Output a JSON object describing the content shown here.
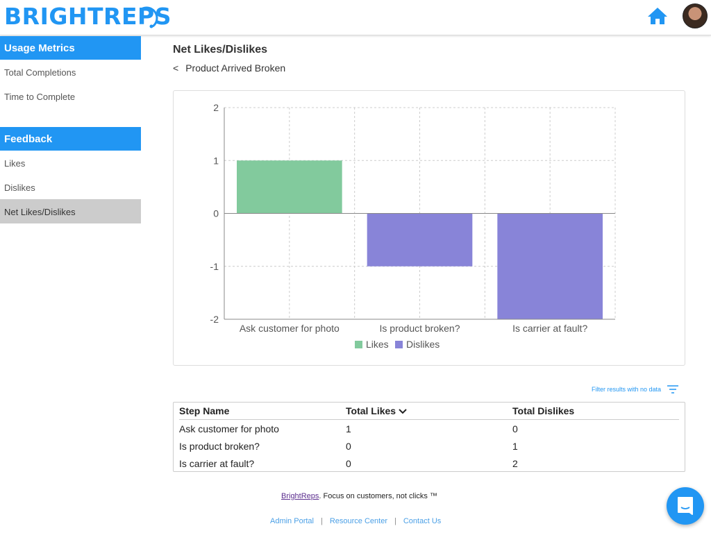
{
  "header": {
    "logo": "BRIGHTREPS"
  },
  "sidebar": {
    "sections": [
      {
        "label": "Usage Metrics",
        "items": [
          "Total Completions",
          "Time to Complete"
        ]
      },
      {
        "label": "Feedback",
        "items": [
          "Likes",
          "Dislikes",
          "Net Likes/Dislikes"
        ]
      }
    ],
    "active": "Net Likes/Dislikes"
  },
  "page": {
    "title": "Net Likes/Dislikes",
    "back_symbol": "<",
    "back_label": "Product Arrived Broken"
  },
  "colors": {
    "accent": "#2196f3",
    "likes": "#82ca9d",
    "dislikes": "#8884d8"
  },
  "chart_data": {
    "type": "bar",
    "categories": [
      "Ask customer for photo",
      "Is product broken?",
      "Is carrier at fault?"
    ],
    "series": [
      {
        "name": "Likes",
        "values": [
          1,
          0,
          0
        ]
      },
      {
        "name": "Dislikes",
        "values": [
          0,
          -1,
          -2
        ]
      }
    ],
    "ylim": [
      -2,
      2
    ],
    "yticks": [
      2,
      1,
      0,
      -1,
      -2
    ],
    "grid": true,
    "legend": "bottom"
  },
  "filter": {
    "label": "Filter results with no data"
  },
  "table": {
    "headers": [
      "Step Name",
      "Total Likes",
      "Total Dislikes"
    ],
    "rows": [
      [
        "Ask customer for photo",
        "1",
        "0"
      ],
      [
        "Is product broken?",
        "0",
        "1"
      ],
      [
        "Is carrier at fault?",
        "0",
        "2"
      ]
    ]
  },
  "footer": {
    "brand": "BrightReps",
    "tagline": ". Focus on customers, not clicks ™",
    "links": [
      "Admin Portal",
      "Resource Center",
      "Contact Us"
    ],
    "sep": "|"
  }
}
